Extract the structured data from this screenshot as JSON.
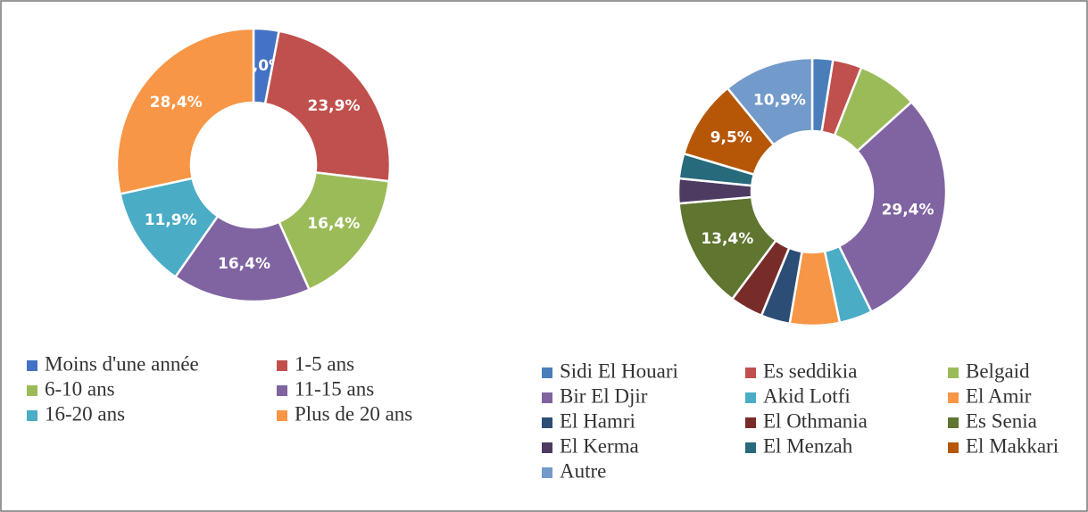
{
  "chart_data": [
    {
      "type": "donut",
      "categories": [
        "Moins d'une année",
        "1-5 ans",
        "6-10 ans",
        "11-15 ans",
        "16-20 ans",
        "Plus de 20 ans"
      ],
      "values": [
        3.0,
        23.9,
        16.4,
        16.4,
        11.9,
        28.4
      ],
      "value_labels": [
        "3,0%",
        "23,9%",
        "16,4%",
        "16,4%",
        "11,9%",
        "28,4%"
      ],
      "colors": [
        "#4472c4",
        "#c0504d",
        "#9bbb59",
        "#8064a2",
        "#4bacc6",
        "#f79646"
      ],
      "legend": "bottom"
    },
    {
      "type": "donut",
      "categories": [
        "Sidi El Houari",
        "Es seddikia",
        "Belgaid",
        "Bir El Djir",
        "Akid Lotfi",
        "El Amir",
        "El Hamri",
        "El Othmania",
        "Es Senia",
        "El Kerma",
        "El Menzah",
        "El Makkari",
        "Autre"
      ],
      "values": [
        2.5,
        3.5,
        7.3,
        29.4,
        4.0,
        6.0,
        3.5,
        4.0,
        13.4,
        3.0,
        3.0,
        9.5,
        10.9
      ],
      "value_labels": [
        null,
        null,
        null,
        "29,4%",
        null,
        null,
        null,
        null,
        "13,4%",
        null,
        null,
        "9,5%",
        "10,9%"
      ],
      "colors": [
        "#4a7ebb",
        "#c0504d",
        "#9bbb59",
        "#8064a2",
        "#4bacc6",
        "#f79646",
        "#2c4d75",
        "#772c2a",
        "#5f7530",
        "#4d3b62",
        "#276a7c",
        "#b65708",
        "#729aca"
      ],
      "legend": "bottom"
    }
  ]
}
